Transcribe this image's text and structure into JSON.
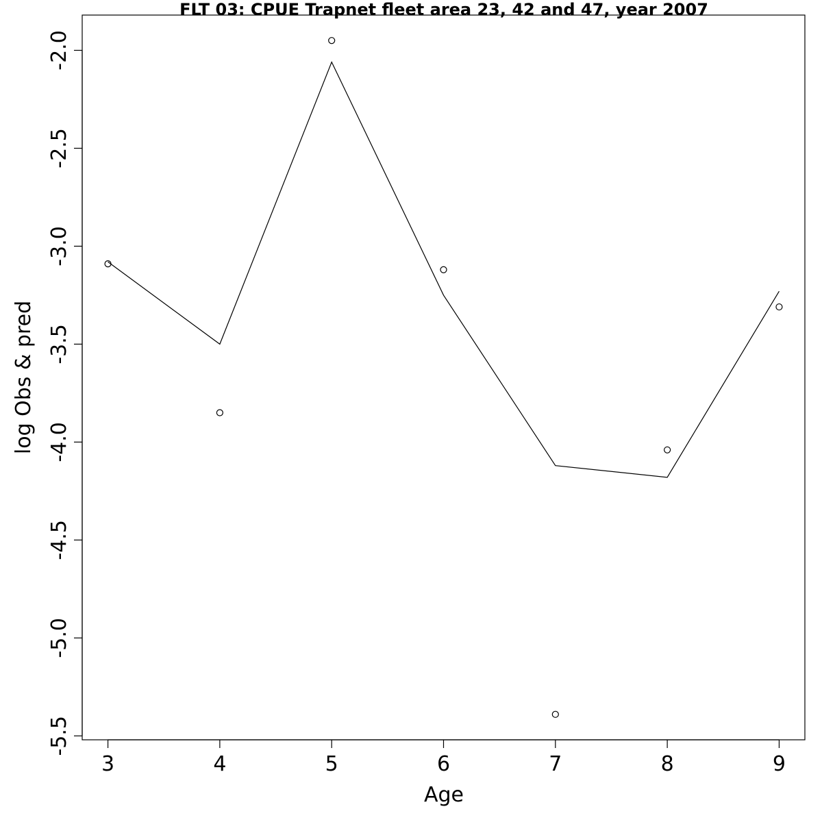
{
  "chart_data": {
    "type": "line",
    "title": "FLT 03: CPUE Trapnet fleet area 23, 42 and 47, year 2007",
    "xlabel": "Age",
    "ylabel": "log Obs & pred",
    "x": [
      3,
      4,
      5,
      6,
      7,
      8,
      9
    ],
    "series": [
      {
        "kind": "points",
        "marker": "open-circle",
        "values": [
          -3.09,
          -3.85,
          -1.95,
          -3.12,
          -5.39,
          -4.04,
          -3.31
        ]
      },
      {
        "kind": "line",
        "values": [
          -3.08,
          -3.5,
          -2.06,
          -3.25,
          -4.12,
          -4.18,
          -3.23
        ]
      }
    ],
    "xlim": [
      2.77,
      9.23
    ],
    "ylim": [
      -5.52,
      -1.82
    ],
    "x_ticks": [
      3,
      4,
      5,
      6,
      7,
      8,
      9
    ],
    "x_tick_labels": [
      "3",
      "4",
      "5",
      "6",
      "7",
      "8",
      "9"
    ],
    "y_ticks": [
      -5.5,
      -5.0,
      -4.5,
      -4.0,
      -3.5,
      -3.0,
      -2.5,
      -2.0
    ],
    "y_tick_labels": [
      "-5.5",
      "-5.0",
      "-4.5",
      "-4.0",
      "-3.5",
      "-3.0",
      "-2.5",
      "-2.0"
    ],
    "grid": false,
    "colors": {
      "line": "#000000",
      "points": "#000000",
      "axes": "#000000"
    }
  }
}
